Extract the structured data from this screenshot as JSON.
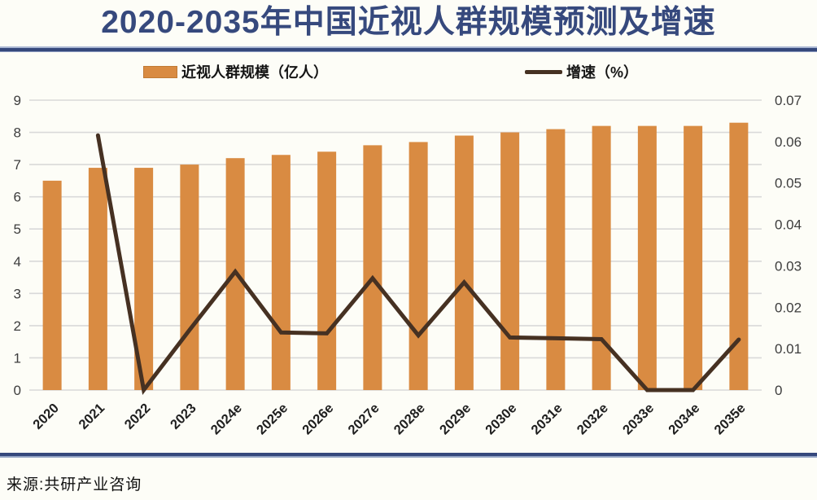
{
  "header": {
    "title": "2020-2035年中国近视人群规模预测及增速"
  },
  "footer": {
    "source": "来源:共研产业咨询"
  },
  "colors": {
    "title_navy": "#36497d",
    "rule_navy": "#35487c",
    "bar_orange": "#d98b42",
    "line_brown": "#463122",
    "gridline_gray": "#d9d9d9",
    "axis_text": "#3d3d3d",
    "category_text": "#1f1f1f",
    "background": "#fdfdf7"
  },
  "chart_data": {
    "type": "bar",
    "subtype": "combo-bar-line",
    "title": "2020-2035年中国近视人群规模预测及增速",
    "categories": [
      "2020",
      "2021",
      "2022",
      "2023",
      "2024e",
      "2025e",
      "2026e",
      "2027e",
      "2028e",
      "2029e",
      "2030e",
      "2031e",
      "2032e",
      "2033e",
      "2034e",
      "2035e"
    ],
    "series": [
      {
        "name": "近视人群规模（亿人）",
        "type": "bar",
        "axis": "left",
        "color": "#d98b42",
        "values": [
          6.5,
          6.9,
          6.9,
          7.0,
          7.2,
          7.3,
          7.4,
          7.6,
          7.7,
          7.9,
          8.0,
          8.1,
          8.2,
          8.2,
          8.2,
          8.3
        ]
      },
      {
        "name": "增速（%）",
        "type": "line",
        "axis": "right",
        "color": "#463122",
        "values": [
          null,
          0.0615,
          0.0,
          0.0145,
          0.0286,
          0.0139,
          0.0137,
          0.027,
          0.0132,
          0.026,
          0.0127,
          0.0125,
          0.0123,
          0.0,
          0.0,
          0.0122
        ]
      }
    ],
    "left_axis": {
      "min": 0,
      "max": 9,
      "ticks": [
        0,
        1,
        2,
        3,
        4,
        5,
        6,
        7,
        8,
        9
      ],
      "tick_labels": [
        "0",
        "1",
        "2",
        "3",
        "4",
        "5",
        "6",
        "7",
        "8",
        "9"
      ]
    },
    "right_axis": {
      "min": 0,
      "max": 0.07,
      "ticks": [
        0,
        0.01,
        0.02,
        0.03,
        0.04,
        0.05,
        0.06,
        0.07
      ],
      "tick_labels": [
        "0",
        "0.01",
        "0.02",
        "0.03",
        "0.04",
        "0.05",
        "0.06",
        "0.07"
      ]
    },
    "grid": true,
    "legend_position": "top"
  }
}
